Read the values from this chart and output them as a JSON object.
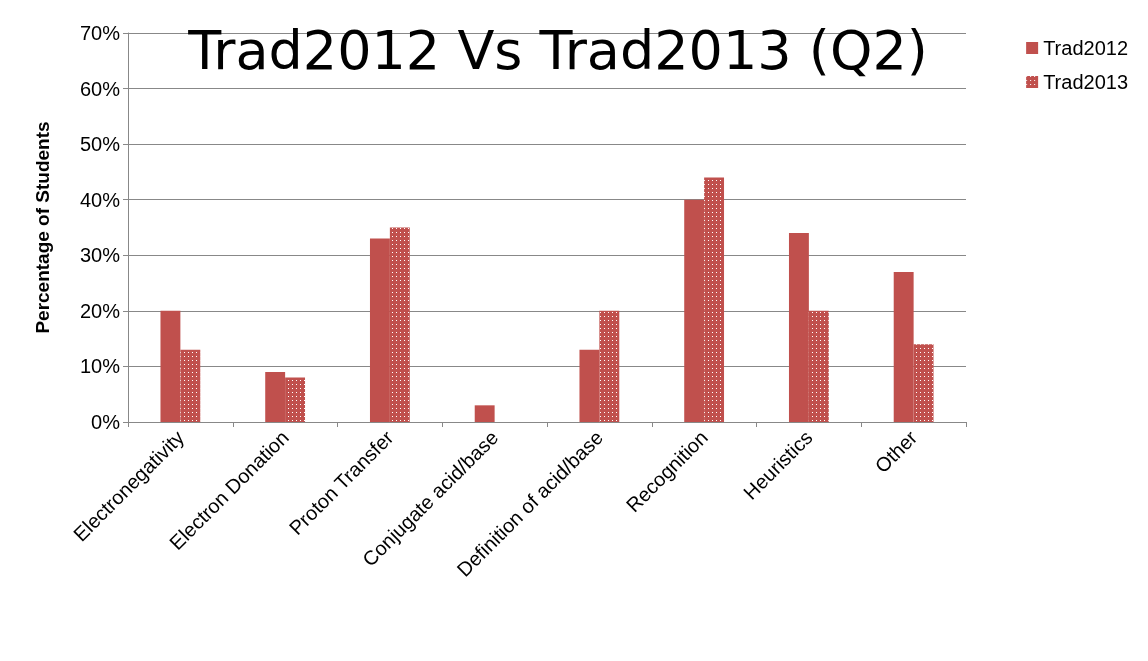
{
  "chart_data": {
    "type": "bar",
    "title": "Trad2012 Vs Trad2013 (Q2)",
    "ylabel": "Percentage of Students",
    "categories": [
      "Electronegativity",
      "Electron Donation",
      "Proton Transfer",
      "Conjugate acid/base",
      "Definition of acid/base",
      "Recognition",
      "Heuristics",
      "Other"
    ],
    "series": [
      {
        "name": "Trad2012",
        "color": "#c0504d",
        "values": [
          20,
          9,
          33,
          3,
          13,
          40,
          34,
          27
        ]
      },
      {
        "name": "Trad2013",
        "color": "#c0504d",
        "values": [
          13,
          8,
          35,
          0,
          20,
          44,
          20,
          14
        ]
      }
    ],
    "ylim": [
      0,
      70
    ],
    "yticks": [
      {
        "value": 0,
        "label": "0%"
      },
      {
        "value": 10,
        "label": "10%"
      },
      {
        "value": 20,
        "label": "20%"
      },
      {
        "value": 30,
        "label": "30%"
      },
      {
        "value": 40,
        "label": "40%"
      },
      {
        "value": 50,
        "label": "50%"
      },
      {
        "value": 60,
        "label": "60%"
      },
      {
        "value": 70,
        "label": "70%"
      }
    ],
    "grid": "y",
    "legend": "top right"
  }
}
